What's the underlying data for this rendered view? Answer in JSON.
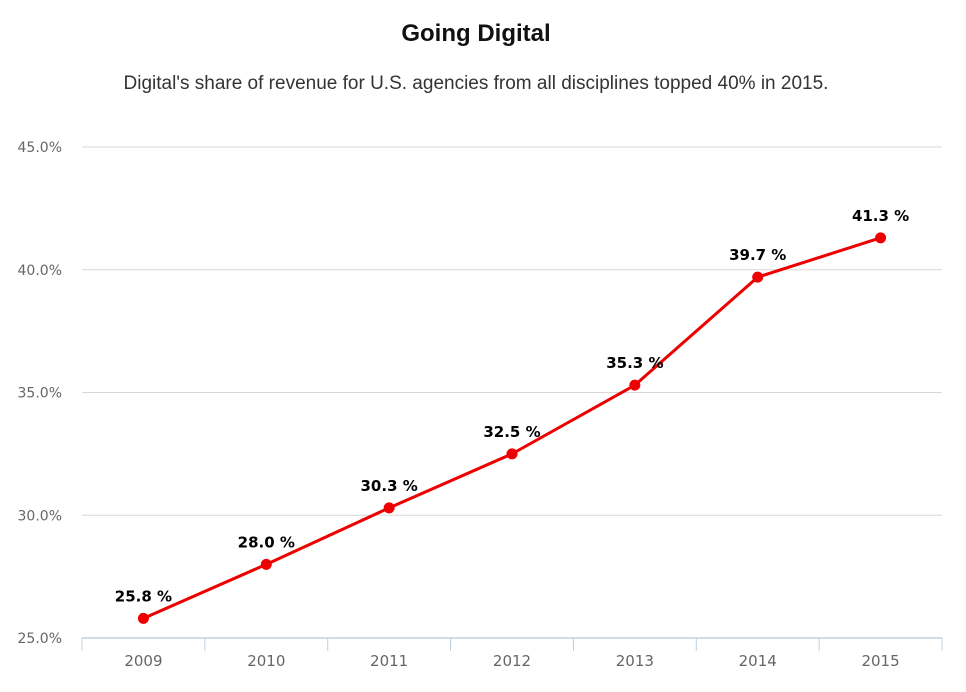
{
  "chart_data": {
    "type": "line",
    "title": "Going Digital",
    "subtitle": "Digital's share of revenue for U.S. agencies from all disciplines topped 40% in 2015.",
    "categories": [
      "2009",
      "2010",
      "2011",
      "2012",
      "2013",
      "2014",
      "2015"
    ],
    "series": [
      {
        "values": [
          25.8,
          28.0,
          30.3,
          32.5,
          35.3,
          39.7,
          41.3
        ],
        "color": "#ee0000"
      }
    ],
    "data_labels": [
      "25.8 %",
      "28.0 %",
      "30.3 %",
      "32.5 %",
      "35.3 %",
      "39.7 %",
      "41.3 %"
    ],
    "ylim": [
      25,
      45
    ],
    "yticks": [
      25,
      30,
      35,
      40,
      45
    ],
    "ytick_labels": [
      "25.0%",
      "30.0%",
      "35.0%",
      "40.0%",
      "45.0%"
    ],
    "grid": true,
    "legend": "none",
    "colors": {
      "line": "#ee0000",
      "grid": "#d8d8d8",
      "axis": "#c0d0e0",
      "tick_text": "#666666"
    }
  }
}
